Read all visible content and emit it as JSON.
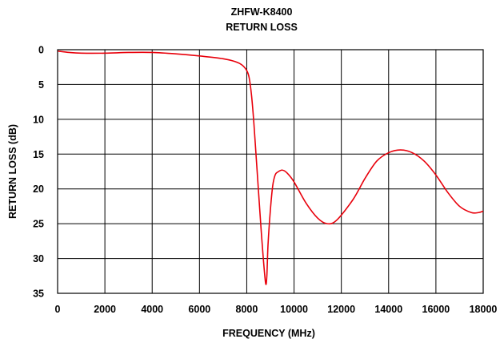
{
  "chart_data": {
    "type": "line",
    "title": "ZHFW-K8400",
    "subtitle": "RETURN LOSS",
    "xlabel": "FREQUENCY (MHz)",
    "ylabel": "RETURN LOSS (dB)",
    "xlim": [
      0,
      18000
    ],
    "ylim": [
      0,
      35
    ],
    "y_inverted": true,
    "grid": true,
    "x_ticks": [
      "0",
      "2000",
      "4000",
      "6000",
      "8000",
      "10000",
      "12000",
      "14000",
      "16000",
      "18000"
    ],
    "y_ticks": [
      "0",
      "5",
      "10",
      "15",
      "20",
      "25",
      "30",
      "35"
    ],
    "series": [
      {
        "color": "#e8000b",
        "x": [
          10,
          500,
          1000,
          2000,
          3000,
          4000,
          5000,
          6000,
          7000,
          7500,
          7800,
          8000,
          8100,
          8200,
          8300,
          8400,
          8500,
          8600,
          8700,
          8800,
          8850,
          8900,
          9000,
          9100,
          9200,
          9300,
          9500,
          9700,
          10000,
          10500,
          11000,
          11400,
          11800,
          12500,
          13000,
          13500,
          14000,
          14500,
          15000,
          15500,
          16000,
          16500,
          17000,
          17500,
          17800,
          18000
        ],
        "y": [
          0.2,
          0.4,
          0.5,
          0.5,
          0.4,
          0.4,
          0.6,
          0.9,
          1.3,
          1.7,
          2.2,
          3.0,
          4.0,
          6.5,
          10.5,
          15.5,
          20.5,
          25.5,
          30.0,
          33.6,
          32.5,
          28.0,
          23.0,
          19.5,
          18.0,
          17.6,
          17.3,
          17.7,
          19.0,
          22.0,
          24.2,
          25.0,
          24.5,
          21.5,
          18.5,
          16.0,
          14.8,
          14.4,
          14.8,
          16.0,
          18.0,
          20.5,
          22.5,
          23.4,
          23.4,
          23.2
        ]
      }
    ]
  }
}
